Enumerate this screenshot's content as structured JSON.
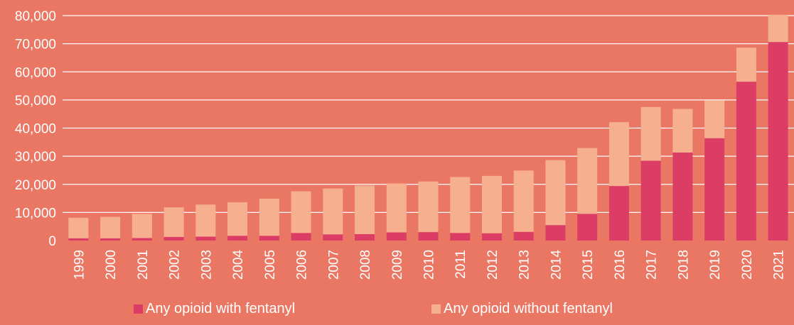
{
  "colors": {
    "background": "#EA7763",
    "with_fentanyl": "#DC3D64",
    "without_fentanyl": "#F7B08F",
    "gridline": "#FFFFFF",
    "text": "#FFFFFF"
  },
  "chart_data": {
    "type": "bar",
    "stacked": true,
    "title": "",
    "xlabel": "",
    "ylabel": "",
    "ylim": [
      0,
      80000
    ],
    "yticks": [
      0,
      10000,
      20000,
      30000,
      40000,
      50000,
      60000,
      70000,
      80000
    ],
    "ytick_labels": [
      "0",
      "10,000",
      "20,000",
      "30,000",
      "40,000",
      "50,000",
      "60,000",
      "70,000",
      "80,000"
    ],
    "grid": true,
    "legend_position": "bottom",
    "categories": [
      "1999",
      "2000",
      "2001",
      "2002",
      "2003",
      "2004",
      "2005",
      "2006",
      "2007",
      "2008",
      "2009",
      "2010",
      "2011",
      "2012",
      "2013",
      "2014",
      "2015",
      "2016",
      "2017",
      "2018",
      "2019",
      "2020",
      "2021"
    ],
    "series": [
      {
        "name": "Any opioid with fentanyl",
        "values": [
          800,
          800,
          900,
          1300,
          1400,
          1700,
          1700,
          2700,
          2200,
          2300,
          2900,
          3000,
          2700,
          2600,
          3100,
          5500,
          9500,
          19400,
          28400,
          31300,
          36400,
          56500,
          70600
        ]
      },
      {
        "name": "Any opioid without fentanyl",
        "values": [
          7300,
          7600,
          8600,
          10500,
          11400,
          11900,
          13200,
          14800,
          16300,
          17300,
          17400,
          18000,
          19900,
          20400,
          21800,
          23100,
          23400,
          22700,
          19100,
          15500,
          13400,
          12100,
          9700
        ]
      }
    ]
  }
}
